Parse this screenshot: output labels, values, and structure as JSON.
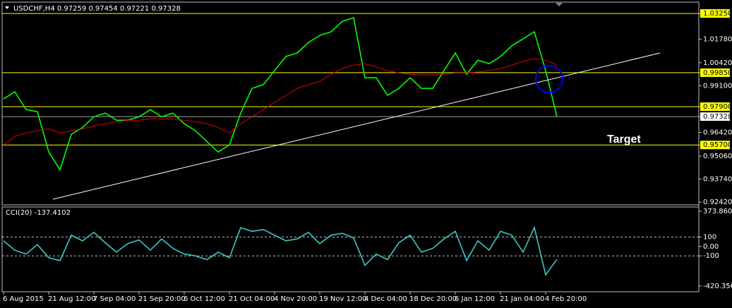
{
  "chart_data": [
    {
      "type": "line",
      "title": "USDCHF,H4 0.97259 0.97454 0.97221 0.97328",
      "annotation": "Target",
      "categories": [
        "6 Aug 2015",
        null,
        null,
        null,
        "21 Aug 12:00",
        null,
        null,
        null,
        "7 Sep 04:00",
        null,
        null,
        null,
        "21 Sep 20:00",
        null,
        null,
        null,
        "6 Oct 12:00",
        null,
        null,
        null,
        "21 Oct 04:00",
        null,
        null,
        null,
        "4 Nov 20:00",
        null,
        null,
        null,
        "19 Nov 12:00",
        null,
        null,
        null,
        "4 Dec 04:00",
        null,
        null,
        null,
        "18 Dec 20:00",
        null,
        null,
        null,
        "6 Jan 12:00",
        null,
        null,
        null,
        "21 Jan 04:00",
        null,
        null,
        null,
        "4 Feb 20:00",
        null
      ],
      "series": [
        {
          "color": "#00ff00",
          "values": [
            0.9834,
            0.9875,
            0.9773,
            0.9761,
            0.953,
            0.9428,
            0.9631,
            0.9671,
            0.9732,
            0.9753,
            0.9712,
            0.9712,
            0.9732,
            0.9773,
            0.9732,
            0.9753,
            0.9692,
            0.9651,
            0.959,
            0.953,
            0.957,
            0.9753,
            0.9895,
            0.9916,
            0.9997,
            1.0078,
            1.0098,
            1.0159,
            1.0199,
            1.022,
            1.028,
            1.0301,
            0.9956,
            0.9956,
            0.9855,
            0.9895,
            0.9956,
            0.9895,
            0.9895,
            0.9997,
            1.0098,
            0.9976,
            1.0057,
            1.0037,
            1.0078,
            1.0139,
            1.0179,
            1.022,
            0.9997,
            0.97328
          ]
        },
        {
          "color": "#e00000",
          "values": [
            0.957,
            0.9619,
            0.9639,
            0.9651,
            0.9663,
            0.9639,
            0.9651,
            0.9663,
            0.9679,
            0.9692,
            0.9704,
            0.9712,
            0.9712,
            0.972,
            0.972,
            0.972,
            0.9712,
            0.9704,
            0.9692,
            0.9671,
            0.9639,
            0.9692,
            0.9732,
            0.9773,
            0.9814,
            0.9855,
            0.9895,
            0.9916,
            0.9936,
            0.9976,
            1.0009,
            1.0029,
            1.0037,
            1.0017,
            0.9997,
            0.9984,
            0.9976,
            0.9972,
            0.9972,
            0.9976,
            0.9984,
            0.9984,
            0.9989,
            0.9997,
            1.0009,
            1.0029,
            1.005,
            1.0066,
            1.0057,
            1.0029
          ]
        }
      ],
      "ylim": [
        0.9226,
        1.037
      ],
      "yticks": [
        {
          "value": 1.0325,
          "label": "1.03250"
        },
        {
          "value": 1.0178,
          "label": "1.01780"
        },
        {
          "value": 1.0042,
          "label": "1.00420"
        },
        {
          "value": 0.9985,
          "label": "0.99850"
        },
        {
          "value": 0.991,
          "label": "0.99100"
        },
        {
          "value": 0.979,
          "label": "0.97900"
        },
        {
          "value": 0.97328,
          "label": "0.97328"
        },
        {
          "value": 0.9642,
          "label": "0.96420"
        },
        {
          "value": 0.957,
          "label": "0.95700"
        },
        {
          "value": 0.9506,
          "label": "0.95060"
        },
        {
          "value": 0.9374,
          "label": "0.93740"
        },
        {
          "value": 0.9242,
          "label": "0.92420"
        }
      ],
      "levels": [
        1.0325,
        0.9985,
        0.979,
        0.957
      ],
      "level_color": "#ffff00",
      "price_line": 0.97328,
      "price_line_color": "#ffffff"
    },
    {
      "type": "line",
      "title": "CCI(20) -137.4102",
      "series": [
        {
          "color": "#3cc8c8",
          "values": [
            60,
            -40,
            -80,
            20,
            -120,
            -150,
            120,
            60,
            150,
            40,
            -60,
            30,
            70,
            -40,
            80,
            -20,
            -80,
            -100,
            -140,
            -60,
            -120,
            200,
            160,
            180,
            120,
            60,
            80,
            150,
            30,
            120,
            140,
            90,
            -200,
            -80,
            -140,
            40,
            120,
            -60,
            -20,
            80,
            160,
            -150,
            60,
            -40,
            160,
            120,
            -60,
            200,
            -300,
            -137.4102
          ]
        }
      ],
      "ylim": [
        -420.3569,
        373.8605
      ],
      "yticks": [
        373.8605,
        100,
        {
          "value": 0,
          "label": "0.00"
        },
        -100,
        -420.3569
      ],
      "levels": [
        100,
        -100
      ],
      "level_color": "#c0c0c0"
    }
  ]
}
